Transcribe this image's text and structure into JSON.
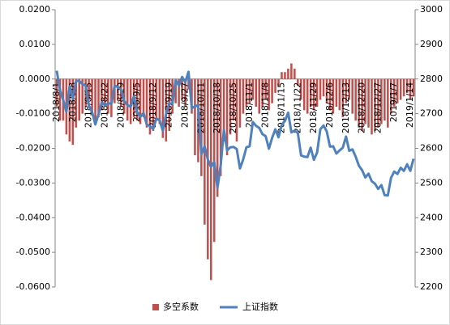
{
  "chart_data": {
    "type": "bar",
    "categories": [
      "2018/8/1",
      null,
      null,
      null,
      null,
      "2018/8/8",
      null,
      null,
      null,
      null,
      "2018/8/15",
      null,
      null,
      null,
      null,
      "2018/8/22",
      null,
      null,
      null,
      null,
      "2018/8/29",
      null,
      null,
      null,
      null,
      "2018/9/5",
      null,
      null,
      null,
      null,
      "2018/9/12",
      null,
      null,
      null,
      null,
      "2018/9/19",
      null,
      null,
      null,
      null,
      "2018/9/27",
      null,
      null,
      null,
      null,
      "2018/10/11",
      null,
      null,
      null,
      null,
      "2018/10/18",
      null,
      null,
      null,
      null,
      "2018/10/25",
      null,
      null,
      null,
      null,
      "2018/11/1",
      null,
      null,
      null,
      null,
      "2018/11/8",
      null,
      null,
      null,
      null,
      "2018/11/15",
      null,
      null,
      null,
      null,
      "2018/11/22",
      null,
      null,
      null,
      null,
      "2018/11/29",
      null,
      null,
      null,
      null,
      "2018/12/6",
      null,
      null,
      null,
      null,
      "2018/12/13",
      null,
      null,
      null,
      null,
      "2018/12/20",
      null,
      null,
      null,
      null,
      "2018/12/27",
      null,
      null,
      null,
      null,
      "2019/1/7",
      null,
      null,
      null,
      null,
      "2019/1/14",
      null
    ],
    "series": [
      {
        "name": "多空系数",
        "type": "bar",
        "color": "#c0504d",
        "axis": "y",
        "values": [
          -0.008,
          -0.012,
          -0.012,
          -0.016,
          -0.018,
          -0.019,
          -0.014,
          -0.012,
          -0.01,
          -0.008,
          -0.006,
          -0.01,
          -0.013,
          -0.011,
          -0.009,
          -0.008,
          -0.01,
          -0.011,
          -0.007,
          -0.006,
          -0.008,
          -0.01,
          -0.012,
          -0.013,
          -0.011,
          -0.012,
          -0.013,
          -0.011,
          -0.014,
          -0.016,
          -0.015,
          -0.012,
          -0.013,
          -0.017,
          -0.018,
          -0.015,
          -0.01,
          -0.007,
          -0.008,
          -0.006,
          -0.008,
          -0.003,
          -0.01,
          -0.022,
          -0.024,
          -0.028,
          -0.042,
          -0.052,
          -0.058,
          -0.047,
          -0.034,
          -0.028,
          -0.018,
          -0.022,
          -0.016,
          -0.012,
          -0.018,
          -0.014,
          -0.01,
          -0.008,
          -0.007,
          -0.006,
          -0.008,
          -0.01,
          -0.008,
          -0.006,
          -0.009,
          -0.007,
          -0.004,
          -0.002,
          0.002,
          0.002,
          0.003,
          0.0045,
          0.003,
          -0.002,
          -0.006,
          -0.009,
          -0.01,
          -0.008,
          -0.009,
          -0.008,
          -0.006,
          -0.005,
          -0.007,
          -0.009,
          -0.01,
          -0.008,
          -0.009,
          -0.011,
          -0.007,
          -0.006,
          -0.01,
          -0.012,
          -0.014,
          -0.015,
          -0.013,
          -0.014,
          -0.016,
          -0.015,
          -0.014,
          -0.013,
          -0.012,
          -0.014,
          -0.01,
          -0.008,
          -0.007,
          -0.006,
          -0.005,
          -0.004,
          -0.006,
          -0.005
        ]
      },
      {
        "name": "上证指数",
        "type": "line",
        "color": "#4f81bd",
        "axis": "y2",
        "values": [
          2824,
          2768,
          2740,
          2705,
          2779,
          2744,
          2794,
          2795,
          2785,
          2781,
          2723,
          2705,
          2669,
          2698,
          2733,
          2724,
          2730,
          2729,
          2781,
          2777,
          2769,
          2737,
          2725,
          2720,
          2750,
          2704,
          2691,
          2702,
          2669,
          2664,
          2656,
          2686,
          2681,
          2651,
          2699,
          2730,
          2729,
          2797,
          2781,
          2806,
          2791,
          2821,
          2716,
          2721,
          2725,
          2583,
          2606,
          2568,
          2546,
          2561,
          2486,
          2550,
          2654,
          2594,
          2603,
          2604,
          2598,
          2542,
          2568,
          2603,
          2606,
          2676,
          2665,
          2659,
          2641,
          2635,
          2599,
          2630,
          2655,
          2632,
          2668,
          2679,
          2703,
          2646,
          2651,
          2645,
          2580,
          2576,
          2575,
          2602,
          2567,
          2588,
          2655,
          2666,
          2649,
          2605,
          2606,
          2585,
          2594,
          2602,
          2634,
          2593,
          2597,
          2576,
          2550,
          2537,
          2516,
          2527,
          2505,
          2498,
          2483,
          2494,
          2465,
          2464,
          2515,
          2533,
          2526,
          2544,
          2535,
          2554,
          2535,
          2570
        ]
      }
    ],
    "ylim": [
      -0.06,
      0.02
    ],
    "yticks": [
      {
        "value": -0.06,
        "label": "-0.0600"
      },
      {
        "value": -0.05,
        "label": "-0.0500"
      },
      {
        "value": -0.04,
        "label": "-0.0400"
      },
      {
        "value": -0.03,
        "label": "-0.0300"
      },
      {
        "value": -0.02,
        "label": "-0.0200"
      },
      {
        "value": -0.01,
        "label": "-0.0100"
      },
      {
        "value": 0,
        "label": "0.0000"
      },
      {
        "value": 0.01,
        "label": "0.0100"
      },
      {
        "value": 0.02,
        "label": "0.0200"
      }
    ],
    "y2lim": [
      2200,
      3000
    ],
    "y2ticks": [
      2200,
      2300,
      2400,
      2500,
      2600,
      2700,
      2800,
      2900,
      3000
    ],
    "grid": false,
    "legend": "bottom"
  }
}
